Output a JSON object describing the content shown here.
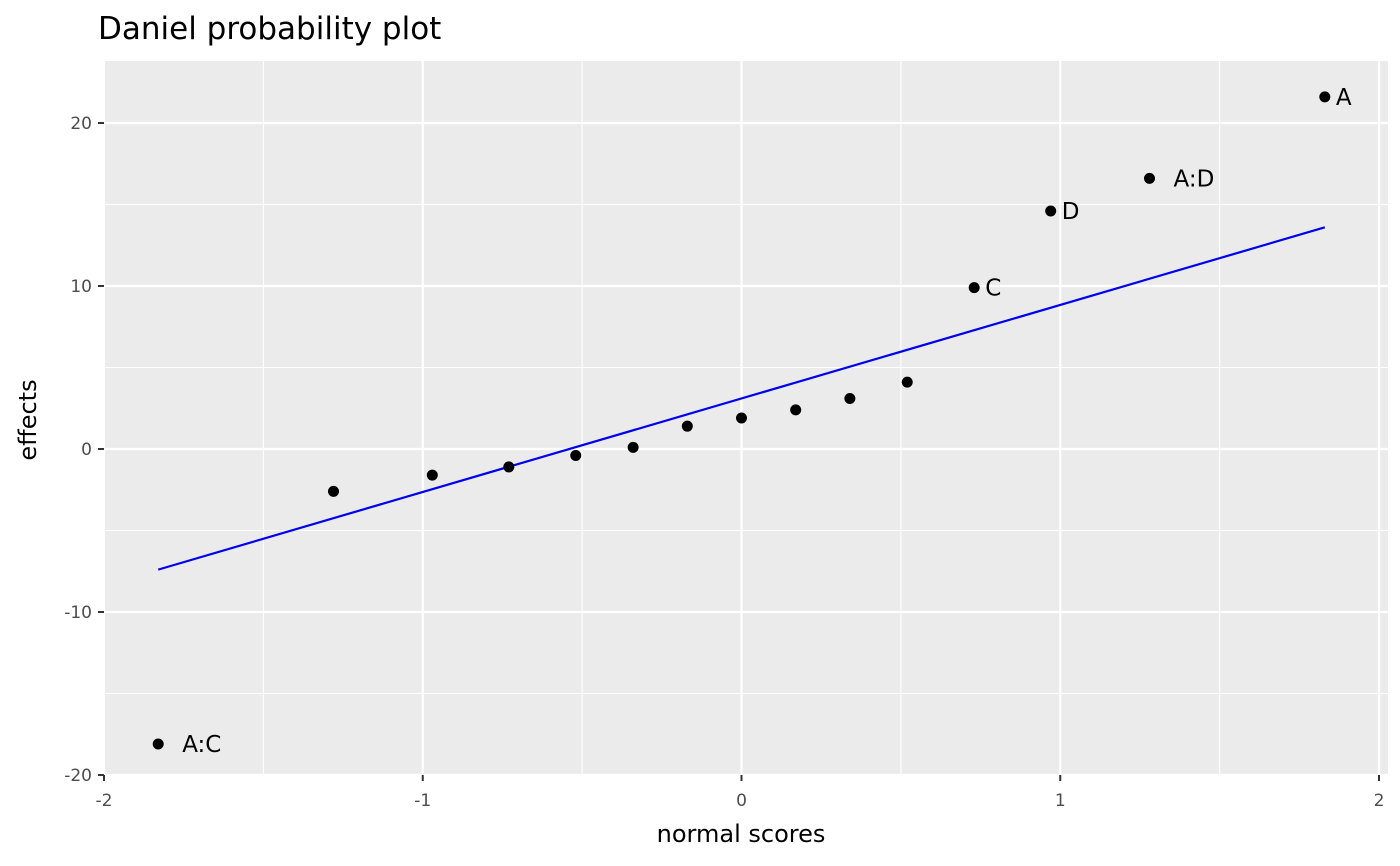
{
  "chart_data": {
    "type": "scatter",
    "title": "Daniel probability plot",
    "xlabel": "normal scores",
    "ylabel": "effects",
    "xlim": [
      -2,
      2
    ],
    "ylim": [
      -20,
      22
    ],
    "x_ticks": [
      -2,
      -1,
      0,
      1,
      2
    ],
    "x_tick_labels": [
      "-2",
      "-1",
      "0",
      "1",
      "2"
    ],
    "y_ticks": [
      -20,
      -10,
      0,
      10,
      20
    ],
    "y_tick_labels": [
      "-20",
      "-10",
      "0",
      "10",
      "20"
    ],
    "grid": true,
    "points": [
      {
        "x": -1.83,
        "y": -18.1,
        "label": "A:C"
      },
      {
        "x": -1.28,
        "y": -2.6,
        "label": ""
      },
      {
        "x": -0.97,
        "y": -1.6,
        "label": ""
      },
      {
        "x": -0.73,
        "y": -1.1,
        "label": ""
      },
      {
        "x": -0.52,
        "y": -0.4,
        "label": ""
      },
      {
        "x": -0.34,
        "y": 0.1,
        "label": ""
      },
      {
        "x": -0.17,
        "y": 1.4,
        "label": ""
      },
      {
        "x": 0.0,
        "y": 1.9,
        "label": ""
      },
      {
        "x": 0.17,
        "y": 2.4,
        "label": ""
      },
      {
        "x": 0.34,
        "y": 3.1,
        "label": ""
      },
      {
        "x": 0.52,
        "y": 4.1,
        "label": ""
      },
      {
        "x": 0.73,
        "y": 9.9,
        "label": "C"
      },
      {
        "x": 0.97,
        "y": 14.6,
        "label": "D"
      },
      {
        "x": 1.28,
        "y": 16.6,
        "label": "A:D"
      },
      {
        "x": 1.83,
        "y": 21.6,
        "label": "A"
      }
    ],
    "reference_line": {
      "x": [
        -1.83,
        1.83
      ],
      "y": [
        -7.4,
        13.6
      ],
      "color": "#0000ee"
    },
    "point_color": "#000000",
    "panel_background": "#ebebeb",
    "grid_color": "#ffffff"
  }
}
